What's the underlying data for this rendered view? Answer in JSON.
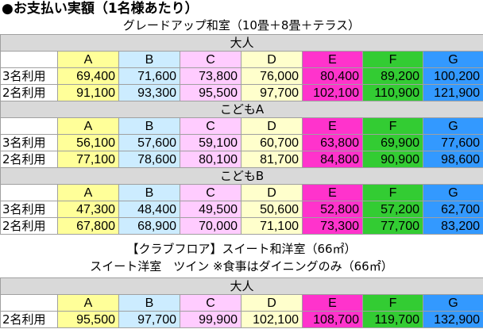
{
  "title": "●お支払い実額（1名様あたり）",
  "plan1": {
    "subtitle": "グレードアップ和室（10畳＋8畳＋テラス）",
    "columns": [
      "A",
      "B",
      "C",
      "D",
      "E",
      "F",
      "G"
    ],
    "sections": [
      {
        "name": "大人",
        "rows": [
          {
            "label": "3名利用",
            "values": [
              "69,400",
              "71,600",
              "73,800",
              "76,000",
              "80,400",
              "89,200",
              "100,200"
            ]
          },
          {
            "label": "2名利用",
            "values": [
              "91,100",
              "93,300",
              "95,500",
              "97,700",
              "102,100",
              "110,900",
              "121,900"
            ]
          }
        ]
      },
      {
        "name": "こどもA",
        "rows": [
          {
            "label": "3名利用",
            "values": [
              "56,100",
              "57,600",
              "59,100",
              "60,700",
              "63,800",
              "69,900",
              "77,600"
            ]
          },
          {
            "label": "2名利用",
            "values": [
              "77,100",
              "78,600",
              "80,100",
              "81,700",
              "84,800",
              "90,900",
              "98,600"
            ]
          }
        ]
      },
      {
        "name": "こどもB",
        "rows": [
          {
            "label": "3名利用",
            "values": [
              "47,300",
              "48,400",
              "49,500",
              "50,600",
              "52,800",
              "57,200",
              "62,700"
            ]
          },
          {
            "label": "2名利用",
            "values": [
              "67,800",
              "68,900",
              "70,000",
              "71,100",
              "73,300",
              "77,700",
              "83,200"
            ]
          }
        ]
      }
    ]
  },
  "plan2": {
    "subtitle1": "【クラブフロア】スイート和洋室（66㎡）",
    "subtitle2": "スイート洋室　ツイン ※食事はダイニングのみ（66㎡）",
    "columns": [
      "A",
      "B",
      "C",
      "D",
      "E",
      "F",
      "G"
    ],
    "sections": [
      {
        "name": "大人",
        "rows": [
          {
            "label": "2名利用",
            "values": [
              "95,500",
              "97,700",
              "99,900",
              "102,100",
              "108,700",
              "119,700",
              "132,900"
            ]
          }
        ]
      }
    ]
  },
  "colors": {
    "A": "#ffff99",
    "B": "#ccecff",
    "C": "#ffccff",
    "D": "#ffffcc",
    "E": "#ff33cc",
    "F": "#33cc33",
    "G": "#3399ff",
    "section": "#d9d9d9"
  }
}
